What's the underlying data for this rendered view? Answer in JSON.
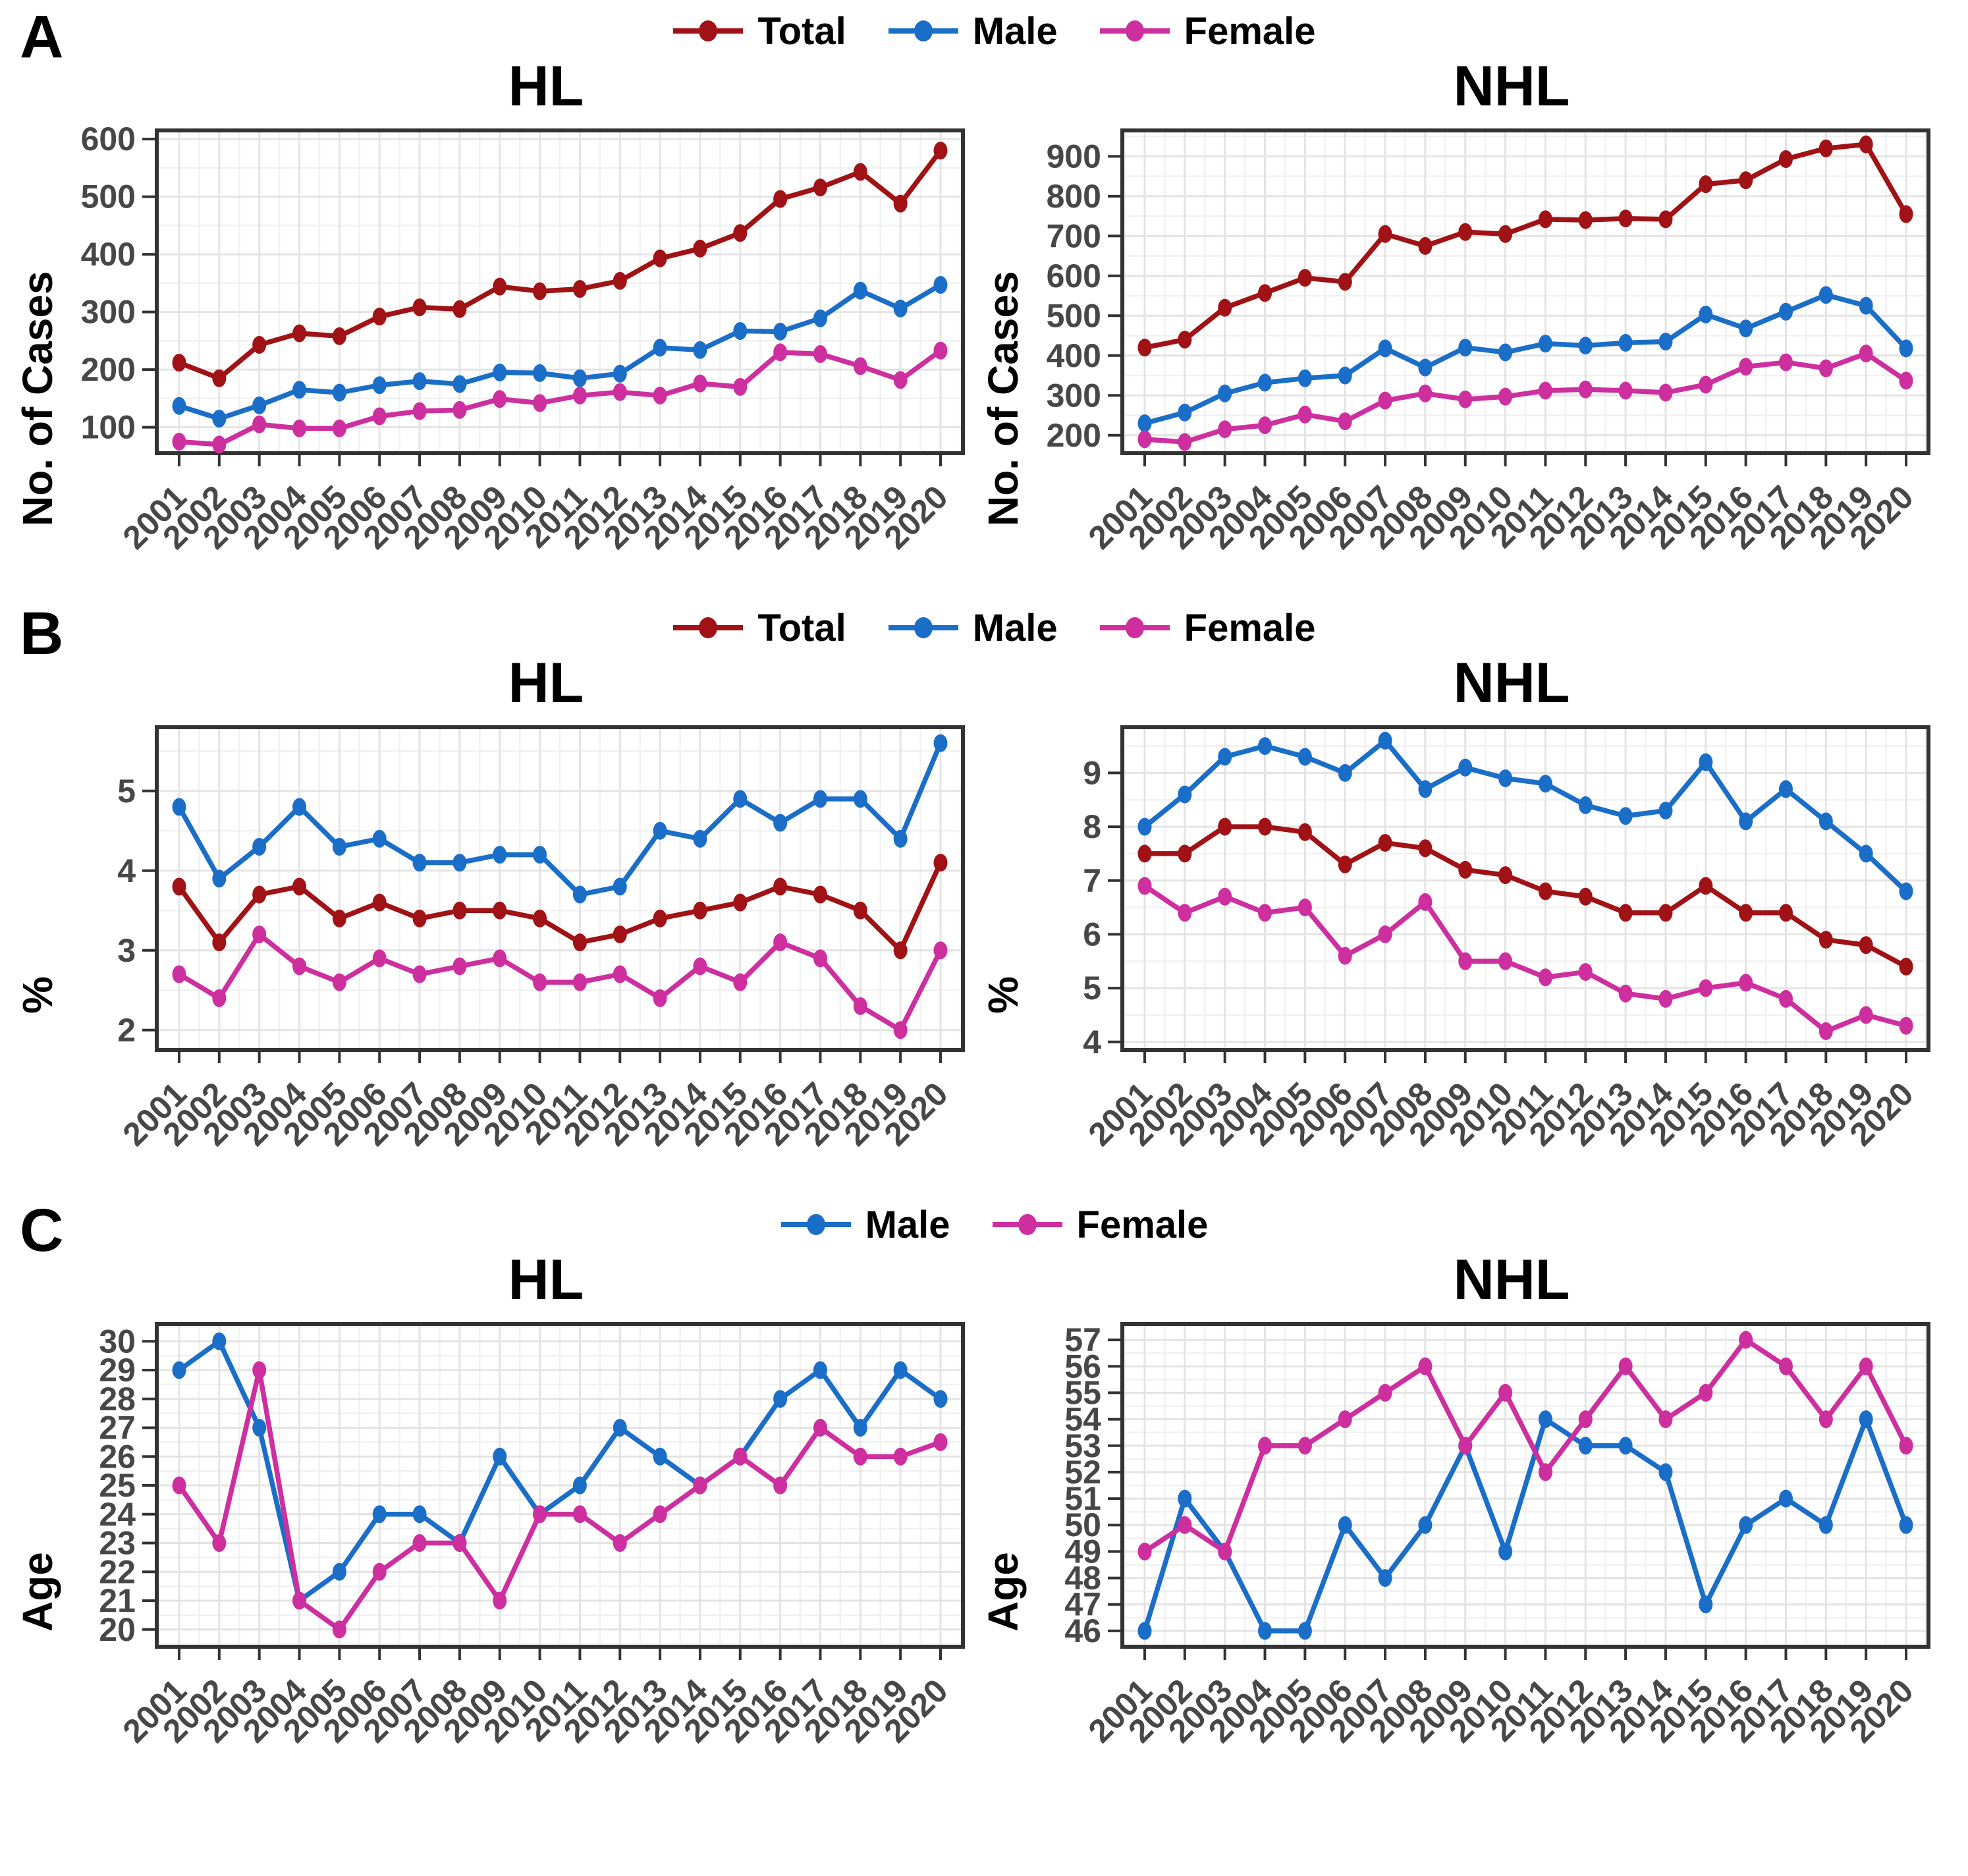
{
  "panel_labels": [
    "A",
    "B",
    "C"
  ],
  "colors": {
    "total": "#A01215",
    "male": "#1B6EC8",
    "female": "#CE2F9F",
    "axis_text": "#474747",
    "axis_line": "#333333",
    "grid_major": "#E4E4E4",
    "grid_minor": "#F1F1F1",
    "panel_bg": "#FFFFFF",
    "title_text": "#000000"
  },
  "years": [
    2001,
    2002,
    2003,
    2004,
    2005,
    2006,
    2007,
    2008,
    2009,
    2010,
    2011,
    2012,
    2013,
    2014,
    2015,
    2016,
    2017,
    2018,
    2019,
    2020
  ],
  "sections": [
    {
      "label": "A",
      "legend": [
        {
          "label": "Total",
          "color_key": "total"
        },
        {
          "label": "Male",
          "color_key": "male"
        },
        {
          "label": "Female",
          "color_key": "female"
        }
      ]
    },
    {
      "label": "B",
      "legend": [
        {
          "label": "Total",
          "color_key": "total"
        },
        {
          "label": "Male",
          "color_key": "male"
        },
        {
          "label": "Female",
          "color_key": "female"
        }
      ]
    },
    {
      "label": "C",
      "legend": [
        {
          "label": "Male",
          "color_key": "male"
        },
        {
          "label": "Female",
          "color_key": "female"
        }
      ]
    }
  ],
  "chart_data": [
    {
      "type": "line",
      "panel": "A",
      "title": "HL",
      "xlabel": "",
      "ylabel": "No. of Cases",
      "categories": [
        2001,
        2002,
        2003,
        2004,
        2005,
        2006,
        2007,
        2008,
        2009,
        2010,
        2011,
        2012,
        2013,
        2014,
        2015,
        2016,
        2017,
        2018,
        2019,
        2020
      ],
      "ylim": [
        55,
        615
      ],
      "yticks": [
        100,
        200,
        300,
        400,
        500,
        600
      ],
      "grid": true,
      "legend_position": "top",
      "series": [
        {
          "name": "Total",
          "color_key": "total",
          "values": [
            212,
            185,
            243,
            263,
            258,
            292,
            308,
            305,
            344,
            336,
            340,
            354,
            393,
            410,
            437,
            496,
            516,
            543,
            488,
            580
          ]
        },
        {
          "name": "Male",
          "color_key": "male",
          "values": [
            137,
            115,
            138,
            165,
            160,
            173,
            180,
            175,
            195,
            194,
            185,
            193,
            238,
            234,
            267,
            266,
            289,
            337,
            306,
            347
          ]
        },
        {
          "name": "Female",
          "color_key": "female",
          "values": [
            75,
            70,
            105,
            98,
            98,
            119,
            128,
            130,
            149,
            142,
            155,
            161,
            155,
            176,
            170,
            230,
            227,
            206,
            182,
            233
          ]
        }
      ]
    },
    {
      "type": "line",
      "panel": "A",
      "title": "NHL",
      "xlabel": "",
      "ylabel": "No. of Cases",
      "categories": [
        2001,
        2002,
        2003,
        2004,
        2005,
        2006,
        2007,
        2008,
        2009,
        2010,
        2011,
        2012,
        2013,
        2014,
        2015,
        2016,
        2017,
        2018,
        2019,
        2020
      ],
      "ylim": [
        155,
        965
      ],
      "yticks": [
        200,
        300,
        400,
        500,
        600,
        700,
        800,
        900
      ],
      "grid": true,
      "legend_position": "top",
      "series": [
        {
          "name": "Total",
          "color_key": "total",
          "values": [
            420,
            440,
            520,
            557,
            595,
            585,
            705,
            675,
            710,
            705,
            742,
            740,
            744,
            742,
            830,
            840,
            893,
            920,
            930,
            755
          ]
        },
        {
          "name": "Male",
          "color_key": "male",
          "values": [
            230,
            257,
            305,
            332,
            343,
            350,
            418,
            370,
            420,
            408,
            430,
            425,
            432,
            435,
            503,
            468,
            510,
            552,
            525,
            418
          ]
        },
        {
          "name": "Female",
          "color_key": "female",
          "values": [
            190,
            183,
            215,
            225,
            252,
            235,
            287,
            305,
            290,
            297,
            312,
            315,
            312,
            307,
            327,
            372,
            383,
            368,
            405,
            337
          ]
        }
      ]
    },
    {
      "type": "line",
      "panel": "B",
      "title": "HL",
      "xlabel": "",
      "ylabel": "%",
      "categories": [
        2001,
        2002,
        2003,
        2004,
        2005,
        2006,
        2007,
        2008,
        2009,
        2010,
        2011,
        2012,
        2013,
        2014,
        2015,
        2016,
        2017,
        2018,
        2019,
        2020
      ],
      "ylim": [
        1.75,
        5.8
      ],
      "yticks": [
        2,
        3,
        4,
        5
      ],
      "grid": true,
      "legend_position": "top",
      "series": [
        {
          "name": "Total",
          "color_key": "total",
          "values": [
            3.8,
            3.1,
            3.7,
            3.8,
            3.4,
            3.6,
            3.4,
            3.5,
            3.5,
            3.4,
            3.1,
            3.2,
            3.4,
            3.5,
            3.6,
            3.8,
            3.7,
            3.5,
            3.0,
            4.1
          ]
        },
        {
          "name": "Male",
          "color_key": "male",
          "values": [
            4.8,
            3.9,
            4.3,
            4.8,
            4.3,
            4.4,
            4.1,
            4.1,
            4.2,
            4.2,
            3.7,
            3.8,
            4.5,
            4.4,
            4.9,
            4.6,
            4.9,
            4.9,
            4.4,
            5.6
          ]
        },
        {
          "name": "Female",
          "color_key": "female",
          "values": [
            2.7,
            2.4,
            3.2,
            2.8,
            2.6,
            2.9,
            2.7,
            2.8,
            2.9,
            2.6,
            2.6,
            2.7,
            2.4,
            2.8,
            2.6,
            3.1,
            2.9,
            2.3,
            2.0,
            3.0
          ]
        }
      ]
    },
    {
      "type": "line",
      "panel": "B",
      "title": "NHL",
      "xlabel": "",
      "ylabel": "%",
      "categories": [
        2001,
        2002,
        2003,
        2004,
        2005,
        2006,
        2007,
        2008,
        2009,
        2010,
        2011,
        2012,
        2013,
        2014,
        2015,
        2016,
        2017,
        2018,
        2019,
        2020
      ],
      "ylim": [
        3.85,
        9.85
      ],
      "yticks": [
        4,
        5,
        6,
        7,
        8,
        9
      ],
      "grid": true,
      "legend_position": "top",
      "series": [
        {
          "name": "Total",
          "color_key": "total",
          "values": [
            7.5,
            7.5,
            8.0,
            8.0,
            7.9,
            7.3,
            7.7,
            7.6,
            7.2,
            7.1,
            6.8,
            6.7,
            6.4,
            6.4,
            6.9,
            6.4,
            6.4,
            5.9,
            5.8,
            5.4
          ]
        },
        {
          "name": "Male",
          "color_key": "male",
          "values": [
            8.0,
            8.6,
            9.3,
            9.5,
            9.3,
            9.0,
            9.6,
            8.7,
            9.1,
            8.9,
            8.8,
            8.4,
            8.2,
            8.3,
            9.2,
            8.1,
            8.7,
            8.1,
            7.5,
            6.8
          ]
        },
        {
          "name": "Female",
          "color_key": "female",
          "values": [
            6.9,
            6.4,
            6.7,
            6.4,
            6.5,
            5.6,
            6.0,
            6.6,
            5.5,
            5.5,
            5.2,
            5.3,
            4.9,
            4.8,
            5.0,
            5.1,
            4.8,
            4.2,
            4.5,
            4.3
          ]
        }
      ]
    },
    {
      "type": "line",
      "panel": "C",
      "title": "HL",
      "xlabel": "",
      "ylabel": "Age",
      "categories": [
        2001,
        2002,
        2003,
        2004,
        2005,
        2006,
        2007,
        2008,
        2009,
        2010,
        2011,
        2012,
        2013,
        2014,
        2015,
        2016,
        2017,
        2018,
        2019,
        2020
      ],
      "ylim": [
        19.4,
        30.6
      ],
      "yticks": [
        20,
        21,
        22,
        23,
        24,
        25,
        26,
        27,
        28,
        29,
        30
      ],
      "grid": true,
      "legend_position": "top",
      "series": [
        {
          "name": "Male",
          "color_key": "male",
          "values": [
            29,
            30,
            27,
            21,
            22,
            24,
            24,
            23,
            26,
            24,
            25,
            27,
            26,
            25,
            26,
            28,
            29,
            27,
            29,
            28
          ]
        },
        {
          "name": "Female",
          "color_key": "female",
          "values": [
            25,
            23,
            29,
            21,
            20,
            22,
            23,
            23,
            21,
            24,
            24,
            23,
            24,
            25,
            26,
            25,
            27,
            26,
            26,
            26.5
          ]
        }
      ]
    },
    {
      "type": "line",
      "panel": "C",
      "title": "NHL",
      "xlabel": "",
      "ylabel": "Age",
      "categories": [
        2001,
        2002,
        2003,
        2004,
        2005,
        2006,
        2007,
        2008,
        2009,
        2010,
        2011,
        2012,
        2013,
        2014,
        2015,
        2016,
        2017,
        2018,
        2019,
        2020
      ],
      "ylim": [
        45.4,
        57.6
      ],
      "yticks": [
        46,
        47,
        48,
        49,
        50,
        51,
        52,
        53,
        54,
        55,
        56,
        57
      ],
      "grid": true,
      "legend_position": "top",
      "series": [
        {
          "name": "Male",
          "color_key": "male",
          "values": [
            46,
            51,
            49,
            46,
            46,
            50,
            48,
            50,
            53,
            49,
            54,
            53,
            53,
            52,
            47,
            50,
            51,
            50,
            54,
            50
          ]
        },
        {
          "name": "Female",
          "color_key": "female",
          "values": [
            49,
            50,
            49,
            53,
            53,
            54,
            55,
            56,
            53,
            55,
            52,
            54,
            56,
            54,
            55,
            57,
            56,
            54,
            56,
            53
          ]
        }
      ]
    }
  ]
}
